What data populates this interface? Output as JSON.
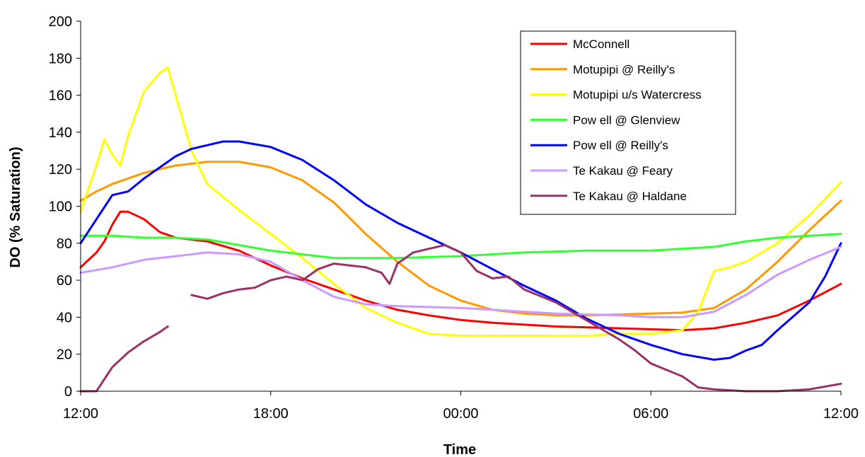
{
  "chart_data": {
    "type": "line",
    "xlabel": "Time",
    "ylabel": "DO (% Saturation)",
    "x_ticks": [
      "12:00",
      "18:00",
      "00:00",
      "06:00",
      "12:00"
    ],
    "xlim_hours": [
      0,
      24
    ],
    "ylim": [
      0,
      200
    ],
    "y_ticks": [
      0,
      20,
      40,
      60,
      80,
      100,
      120,
      140,
      160,
      180,
      200
    ],
    "grid": false,
    "legend_position": "top-right",
    "series": [
      {
        "name": "McConnell",
        "color": "#ff0000",
        "points": [
          [
            0,
            67
          ],
          [
            0.5,
            75
          ],
          [
            0.75,
            81
          ],
          [
            1,
            90
          ],
          [
            1.25,
            97
          ],
          [
            1.5,
            97
          ],
          [
            2,
            93
          ],
          [
            2.5,
            86
          ],
          [
            3,
            83
          ],
          [
            4,
            81
          ],
          [
            5,
            76
          ],
          [
            6,
            68
          ],
          [
            7,
            61
          ],
          [
            8,
            55
          ],
          [
            9,
            49
          ],
          [
            10,
            44
          ],
          [
            11,
            41
          ],
          [
            12,
            38.5
          ],
          [
            13,
            37
          ],
          [
            14,
            36
          ],
          [
            15,
            35
          ],
          [
            16,
            34.5
          ],
          [
            17,
            34
          ],
          [
            18,
            33.5
          ],
          [
            19,
            33
          ],
          [
            20,
            34
          ],
          [
            21,
            37
          ],
          [
            22,
            41
          ],
          [
            23,
            49
          ],
          [
            24,
            58
          ]
        ]
      },
      {
        "name": "Motupipi @ Reilly's",
        "color": "#ff9900",
        "points": [
          [
            0,
            103
          ],
          [
            0.5,
            108
          ],
          [
            1,
            112
          ],
          [
            2,
            118
          ],
          [
            3,
            122
          ],
          [
            4,
            124
          ],
          [
            5,
            124
          ],
          [
            6,
            121
          ],
          [
            7,
            114
          ],
          [
            8,
            102
          ],
          [
            9,
            85
          ],
          [
            10,
            70
          ],
          [
            11,
            57
          ],
          [
            12,
            49
          ],
          [
            13,
            44
          ],
          [
            14,
            42
          ],
          [
            15,
            41
          ],
          [
            16,
            41
          ],
          [
            17,
            41.5
          ],
          [
            18,
            42
          ],
          [
            19,
            42.5
          ],
          [
            20,
            45
          ],
          [
            21,
            55
          ],
          [
            22,
            70
          ],
          [
            23,
            87
          ],
          [
            24,
            103
          ]
        ]
      },
      {
        "name": "Motupipi u/s Watercress",
        "color": "#ffff00",
        "points": [
          [
            0,
            97
          ],
          [
            0.5,
            122
          ],
          [
            0.75,
            136
          ],
          [
            1,
            128
          ],
          [
            1.25,
            122
          ],
          [
            1.5,
            138
          ],
          [
            2,
            162
          ],
          [
            2.5,
            172
          ],
          [
            2.75,
            175
          ],
          [
            3,
            160
          ],
          [
            3.5,
            130
          ],
          [
            4,
            112
          ],
          [
            5,
            98
          ],
          [
            6,
            85
          ],
          [
            7,
            72
          ],
          [
            8,
            58
          ],
          [
            9,
            45
          ],
          [
            10,
            37
          ],
          [
            11,
            31
          ],
          [
            12,
            30
          ],
          [
            13,
            30
          ],
          [
            14,
            30
          ],
          [
            15,
            30
          ],
          [
            16,
            30
          ],
          [
            17,
            31
          ],
          [
            18,
            31
          ],
          [
            19,
            33
          ],
          [
            19.5,
            43
          ],
          [
            20,
            65
          ],
          [
            20.5,
            67
          ],
          [
            21,
            70
          ],
          [
            22,
            80
          ],
          [
            23,
            95
          ],
          [
            24,
            113
          ]
        ]
      },
      {
        "name": "Pow ell @ Glenview",
        "color": "#33ff33",
        "points": [
          [
            0,
            84
          ],
          [
            1,
            84
          ],
          [
            2,
            83
          ],
          [
            3,
            83
          ],
          [
            4,
            82
          ],
          [
            5,
            79
          ],
          [
            6,
            76
          ],
          [
            7,
            74
          ],
          [
            8,
            72
          ],
          [
            9,
            72
          ],
          [
            10,
            72
          ],
          [
            11,
            72.5
          ],
          [
            12,
            73
          ],
          [
            13,
            74
          ],
          [
            14,
            75
          ],
          [
            15,
            75.5
          ],
          [
            16,
            76
          ],
          [
            17,
            76
          ],
          [
            18,
            76
          ],
          [
            19,
            77
          ],
          [
            20,
            78
          ],
          [
            21,
            81
          ],
          [
            22,
            83
          ],
          [
            23,
            84
          ],
          [
            24,
            85
          ]
        ]
      },
      {
        "name": "Pow ell @ Reilly's",
        "color": "#0000ff",
        "points": [
          [
            0,
            80
          ],
          [
            0.5,
            93
          ],
          [
            1,
            106
          ],
          [
            1.5,
            108
          ],
          [
            2,
            115
          ],
          [
            2.5,
            121
          ],
          [
            3,
            127
          ],
          [
            3.5,
            131
          ],
          [
            4,
            133
          ],
          [
            4.5,
            135
          ],
          [
            5,
            135
          ],
          [
            6,
            132
          ],
          [
            7,
            125
          ],
          [
            8,
            114
          ],
          [
            9,
            101
          ],
          [
            10,
            91
          ],
          [
            11,
            83
          ],
          [
            12,
            75
          ],
          [
            13,
            66
          ],
          [
            14,
            57
          ],
          [
            15,
            49
          ],
          [
            16,
            39
          ],
          [
            17,
            31
          ],
          [
            18,
            25
          ],
          [
            19,
            20
          ],
          [
            20,
            17
          ],
          [
            20.5,
            18
          ],
          [
            21,
            22
          ],
          [
            21.5,
            25
          ],
          [
            22,
            33
          ],
          [
            23,
            48
          ],
          [
            23.5,
            62
          ],
          [
            24,
            80
          ]
        ]
      },
      {
        "name": "Te Kakau @ Feary",
        "color": "#cc99ff",
        "points": [
          [
            0,
            64
          ],
          [
            1,
            67
          ],
          [
            2,
            71
          ],
          [
            3,
            73
          ],
          [
            4,
            75
          ],
          [
            5,
            74
          ],
          [
            6,
            70
          ],
          [
            7,
            60
          ],
          [
            8,
            51
          ],
          [
            9,
            47
          ],
          [
            10,
            46
          ],
          [
            11,
            45.5
          ],
          [
            12,
            45
          ],
          [
            13,
            44
          ],
          [
            14,
            43
          ],
          [
            15,
            42
          ],
          [
            16,
            41.5
          ],
          [
            17,
            41
          ],
          [
            18,
            40
          ],
          [
            19,
            40
          ],
          [
            20,
            43
          ],
          [
            21,
            52
          ],
          [
            22,
            63
          ],
          [
            23,
            71
          ],
          [
            24,
            78
          ]
        ]
      },
      {
        "name": "Te Kakau @ Haldane",
        "color": "#993366",
        "segments": [
          [
            [
              0,
              0
            ],
            [
              0.5,
              0
            ],
            [
              1,
              13
            ],
            [
              1.5,
              21
            ],
            [
              2,
              27
            ],
            [
              2.5,
              32
            ],
            [
              2.75,
              35
            ]
          ],
          [
            [
              3.5,
              52
            ],
            [
              4,
              50
            ],
            [
              4.5,
              53
            ],
            [
              5,
              55
            ],
            [
              5.5,
              56
            ],
            [
              6,
              60
            ],
            [
              6.5,
              62
            ],
            [
              7,
              60
            ],
            [
              7.5,
              66
            ],
            [
              8,
              69
            ],
            [
              8.5,
              68
            ],
            [
              9,
              67
            ],
            [
              9.5,
              64
            ],
            [
              9.75,
              58
            ],
            [
              10,
              69
            ],
            [
              10.5,
              75
            ],
            [
              11,
              77
            ],
            [
              11.5,
              79
            ],
            [
              12,
              75
            ],
            [
              12.5,
              65
            ],
            [
              13,
              61
            ],
            [
              13.5,
              62
            ],
            [
              14,
              55
            ],
            [
              15,
              48
            ],
            [
              16,
              38
            ],
            [
              17,
              28
            ],
            [
              17.5,
              22
            ],
            [
              18,
              15
            ],
            [
              19,
              8
            ],
            [
              19.5,
              2
            ],
            [
              20,
              1
            ],
            [
              21,
              0
            ],
            [
              22,
              0
            ],
            [
              23,
              1
            ],
            [
              24,
              4
            ]
          ]
        ]
      }
    ]
  }
}
